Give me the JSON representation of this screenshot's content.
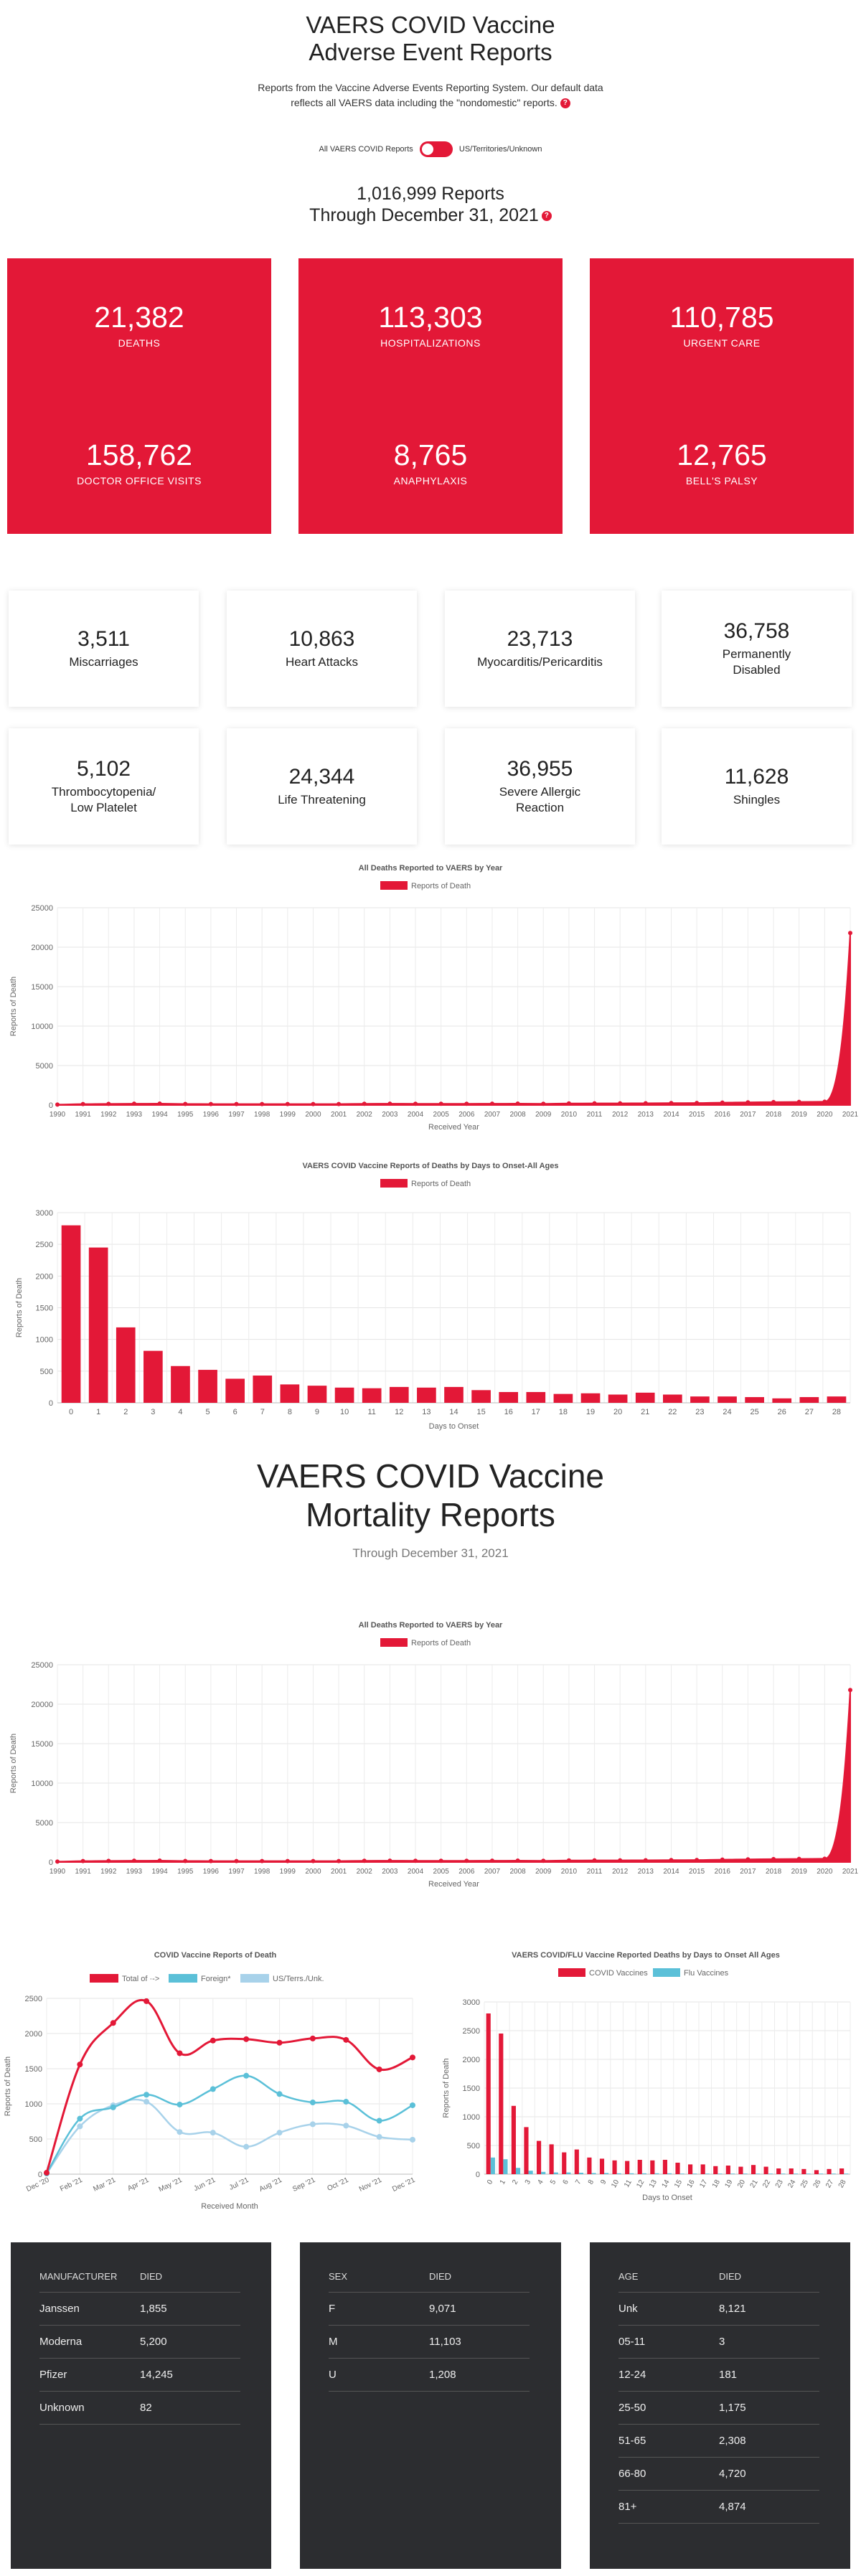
{
  "header": {
    "title_line1": "VAERS COVID Vaccine",
    "title_line2": "Adverse Event Reports",
    "description_line1": "Reports from the Vaccine Adverse Events Reporting System. Our default data",
    "description_line2": "reflects all VAERS data including the \"nondomestic\" reports.",
    "help_glyph": "?",
    "toggle_left_label": "All VAERS COVID Reports",
    "toggle_right_label": "US/Territories/Unknown",
    "total_reports": "1,016,999 Reports",
    "through_date": "Through December 31, 2021"
  },
  "red_stats": [
    {
      "value": "21,382",
      "label": "DEATHS"
    },
    {
      "value": "113,303",
      "label": "HOSPITALIZATIONS"
    },
    {
      "value": "110,785",
      "label": "URGENT CARE"
    },
    {
      "value": "158,762",
      "label": "DOCTOR OFFICE VISITS"
    },
    {
      "value": "8,765",
      "label": "ANAPHYLAXIS"
    },
    {
      "value": "12,765",
      "label": "BELL'S PALSY"
    }
  ],
  "white_stats": [
    {
      "value": "3,511",
      "label_line1": "Miscarriages",
      "label_line2": ""
    },
    {
      "value": "10,863",
      "label_line1": "Heart Attacks",
      "label_line2": ""
    },
    {
      "value": "23,713",
      "label_line1": "Myocarditis/Pericarditis",
      "label_line2": ""
    },
    {
      "value": "36,758",
      "label_line1": "Permanently",
      "label_line2": "Disabled"
    },
    {
      "value": "5,102",
      "label_line1": "Thrombocytopenia/",
      "label_line2": "Low Platelet"
    },
    {
      "value": "24,344",
      "label_line1": "Life Threatening",
      "label_line2": ""
    },
    {
      "value": "36,955",
      "label_line1": "Severe Allergic",
      "label_line2": "Reaction"
    },
    {
      "value": "11,628",
      "label_line1": "Shingles",
      "label_line2": ""
    }
  ],
  "mortality": {
    "title_line1": "VAERS COVID Vaccine",
    "title_line2": "Mortality Reports",
    "subtitle": "Through December 31, 2021"
  },
  "colors": {
    "accent": "#e31837",
    "foreign": "#5bc0d8",
    "us": "#a8d2ea",
    "dark_panel": "#2c2d30"
  },
  "chart_data": [
    {
      "type": "area",
      "title": "All Deaths Reported to VAERS by Year",
      "legend": [
        "Reports of Death"
      ],
      "xlabel": "Received Year",
      "ylabel": "Reports of Death",
      "ylim": [
        0,
        25000
      ],
      "yticks": [
        0,
        5000,
        10000,
        15000,
        20000,
        25000
      ],
      "x": [
        "1990",
        "1991",
        "1992",
        "1993",
        "1994",
        "1995",
        "1996",
        "1997",
        "1998",
        "1999",
        "2000",
        "2001",
        "2002",
        "2003",
        "2004",
        "2005",
        "2006",
        "2007",
        "2008",
        "2009",
        "2010",
        "2011",
        "2012",
        "2013",
        "2014",
        "2015",
        "2016",
        "2017",
        "2018",
        "2019",
        "2020",
        "2021"
      ],
      "series": [
        {
          "name": "Reports of Death",
          "values": [
            60,
            120,
            150,
            170,
            180,
            140,
            130,
            120,
            130,
            130,
            130,
            130,
            160,
            170,
            160,
            160,
            160,
            170,
            180,
            160,
            200,
            220,
            220,
            230,
            250,
            260,
            310,
            340,
            380,
            400,
            420,
            21800
          ]
        }
      ]
    },
    {
      "type": "bar",
      "title": "VAERS COVID Vaccine Reports of Deaths by Days to Onset-All Ages",
      "legend": [
        "Reports of Death"
      ],
      "xlabel": "Days to Onset",
      "ylabel": "Reports of Death",
      "ylim": [
        0,
        3000
      ],
      "yticks": [
        0,
        500,
        1000,
        1500,
        2000,
        2500,
        3000
      ],
      "categories": [
        "0",
        "1",
        "2",
        "3",
        "4",
        "5",
        "6",
        "7",
        "8",
        "9",
        "10",
        "11",
        "12",
        "13",
        "14",
        "15",
        "16",
        "17",
        "18",
        "19",
        "20",
        "21",
        "22",
        "23",
        "24",
        "25",
        "26",
        "27",
        "28"
      ],
      "series": [
        {
          "name": "Reports of Death",
          "values": [
            2800,
            2450,
            1190,
            820,
            580,
            520,
            380,
            430,
            290,
            270,
            240,
            230,
            250,
            240,
            250,
            200,
            170,
            170,
            140,
            150,
            130,
            160,
            130,
            100,
            100,
            90,
            70,
            90,
            100
          ]
        }
      ]
    },
    {
      "type": "area",
      "title": "All Deaths Reported to VAERS by Year",
      "legend": [
        "Reports of Death"
      ],
      "xlabel": "Received Year",
      "ylabel": "Reports of Death",
      "ylim": [
        0,
        25000
      ],
      "yticks": [
        0,
        5000,
        10000,
        15000,
        20000,
        25000
      ],
      "x": [
        "1990",
        "1991",
        "1992",
        "1993",
        "1994",
        "1995",
        "1996",
        "1997",
        "1998",
        "1999",
        "2000",
        "2001",
        "2002",
        "2003",
        "2004",
        "2005",
        "2006",
        "2007",
        "2008",
        "2009",
        "2010",
        "2011",
        "2012",
        "2013",
        "2014",
        "2015",
        "2016",
        "2017",
        "2018",
        "2019",
        "2020",
        "2021"
      ],
      "series": [
        {
          "name": "Reports of Death",
          "values": [
            60,
            120,
            150,
            170,
            180,
            140,
            130,
            120,
            130,
            130,
            130,
            130,
            160,
            170,
            160,
            160,
            160,
            170,
            180,
            160,
            200,
            220,
            220,
            230,
            250,
            260,
            310,
            340,
            380,
            400,
            420,
            21800
          ]
        }
      ]
    },
    {
      "type": "line",
      "title": "COVID Vaccine Reports of Death",
      "legend": [
        "Total of ·->",
        "Foreign*",
        "US/Terrs./Unk."
      ],
      "xlabel": "Received Month",
      "ylabel": "Reports of Death",
      "ylim": [
        0,
        2500
      ],
      "yticks": [
        0,
        500,
        1000,
        1500,
        2000,
        2500
      ],
      "categories": [
        "Dec '20",
        "Feb '21",
        "Mar '21",
        "Apr '21",
        "May '21",
        "Jun '21",
        "Jul '21",
        "Aug '21",
        "Sep '21",
        "Oct '21",
        "Nov '21",
        "Dec '21"
      ],
      "series": [
        {
          "name": "Total of ·->",
          "values": [
            20,
            1560,
            2150,
            2460,
            1720,
            1900,
            1920,
            1870,
            1930,
            1910,
            1490,
            1660
          ]
        },
        {
          "name": "Foreign*",
          "values": [
            10,
            790,
            950,
            1130,
            990,
            1210,
            1400,
            1140,
            1020,
            1030,
            760,
            980
          ]
        },
        {
          "name": "US/Terrs./Unk.",
          "values": [
            10,
            680,
            980,
            1030,
            600,
            590,
            390,
            590,
            710,
            690,
            530,
            490
          ]
        }
      ]
    },
    {
      "type": "bar",
      "title": "VAERS COVID/FLU Vaccine Reported Deaths by Days to Onset All Ages",
      "legend": [
        "COVID Vaccines",
        "Flu Vaccines"
      ],
      "xlabel": "Days to Onset",
      "ylabel": "Reports of Death",
      "ylim": [
        0,
        3000
      ],
      "yticks": [
        0,
        500,
        1000,
        1500,
        2000,
        2500,
        3000
      ],
      "categories": [
        "0",
        "1",
        "2",
        "3",
        "4",
        "5",
        "6",
        "7",
        "8",
        "9",
        "10",
        "11",
        "12",
        "13",
        "14",
        "15",
        "16",
        "17",
        "18",
        "19",
        "20",
        "21",
        "22",
        "23",
        "24",
        "25",
        "26",
        "27",
        "28"
      ],
      "series": [
        {
          "name": "COVID Vaccines",
          "values": [
            2800,
            2450,
            1190,
            820,
            580,
            520,
            380,
            430,
            290,
            270,
            240,
            230,
            250,
            240,
            250,
            200,
            170,
            170,
            140,
            150,
            130,
            160,
            130,
            100,
            100,
            90,
            70,
            90,
            100
          ]
        },
        {
          "name": "Flu Vaccines",
          "values": [
            290,
            260,
            110,
            60,
            40,
            30,
            30,
            25,
            20,
            20,
            15,
            15,
            15,
            15,
            15,
            10,
            10,
            10,
            10,
            10,
            10,
            10,
            10,
            10,
            10,
            10,
            10,
            10,
            10
          ]
        }
      ]
    },
    {
      "type": "table",
      "headers": [
        "MANUFACTURER",
        "DIED"
      ],
      "rows": [
        [
          "Janssen",
          "1,855"
        ],
        [
          "Moderna",
          "5,200"
        ],
        [
          "Pfizer",
          "14,245"
        ],
        [
          "Unknown",
          "82"
        ]
      ]
    },
    {
      "type": "table",
      "headers": [
        "SEX",
        "DIED"
      ],
      "rows": [
        [
          "F",
          "9,071"
        ],
        [
          "M",
          "11,103"
        ],
        [
          "U",
          "1,208"
        ]
      ]
    },
    {
      "type": "table",
      "headers": [
        "AGE",
        "DIED"
      ],
      "rows": [
        [
          "Unk",
          "8,121"
        ],
        [
          "05-11",
          "3"
        ],
        [
          "12-24",
          "181"
        ],
        [
          "25-50",
          "1,175"
        ],
        [
          "51-65",
          "2,308"
        ],
        [
          "66-80",
          "4,720"
        ],
        [
          "81+",
          "4,874"
        ]
      ]
    }
  ]
}
